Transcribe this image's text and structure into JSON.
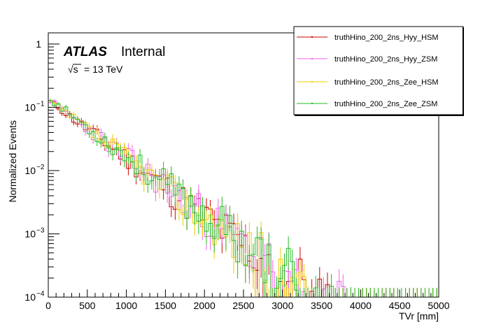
{
  "chart_data": {
    "type": "line",
    "style": "step-histogram",
    "xlabel": "TVr [mm]",
    "ylabel": "Normalized Events",
    "xlim": [
      0,
      5000
    ],
    "ylim": [
      0.0001,
      1.5
    ],
    "yscale": "log",
    "x_ticks": [
      0,
      500,
      1000,
      1500,
      2000,
      2500,
      3000,
      3500,
      4000,
      4500,
      5000
    ],
    "x_tick_labels": [
      "0",
      "500",
      "1000",
      "1500",
      "2000",
      "2500",
      "3000",
      "3500",
      "4000",
      "4500",
      "5000"
    ],
    "y_ticks": [
      0.0001,
      0.001,
      0.01,
      0.1,
      1
    ],
    "y_tick_mantissa": [
      "10",
      "10",
      "10",
      "10",
      "1"
    ],
    "y_tick_exponent": [
      "−4",
      "−3",
      "−2",
      "−1",
      ""
    ],
    "annotations": {
      "atlas": "ATLAS",
      "internal": "Internal",
      "energy_sqrt": "√s",
      "energy_value": "= 13 TeV"
    },
    "legend_position": "top-right",
    "bin_width": 50,
    "shape": "approximately exponential falloff, slope ~ -0.9 decades per 1000 mm, bin-by-bin fluctuations growing at large TVr",
    "series": [
      {
        "name": "truthHino_200_2ns_Hyy_HSM",
        "color": "#cc0000",
        "y0": 0.13,
        "seed": 11
      },
      {
        "name": "truthHino_200_2ns_Hyy_ZSM",
        "color": "#ee66ee",
        "y0": 0.135,
        "seed": 23
      },
      {
        "name": "truthHino_200_2ns_Zee_HSM",
        "color": "#eecc00",
        "y0": 0.13,
        "seed": 37
      },
      {
        "name": "truthHino_200_2ns_Zee_ZSM",
        "color": "#22bb22",
        "y0": 0.14,
        "seed": 53
      }
    ]
  }
}
